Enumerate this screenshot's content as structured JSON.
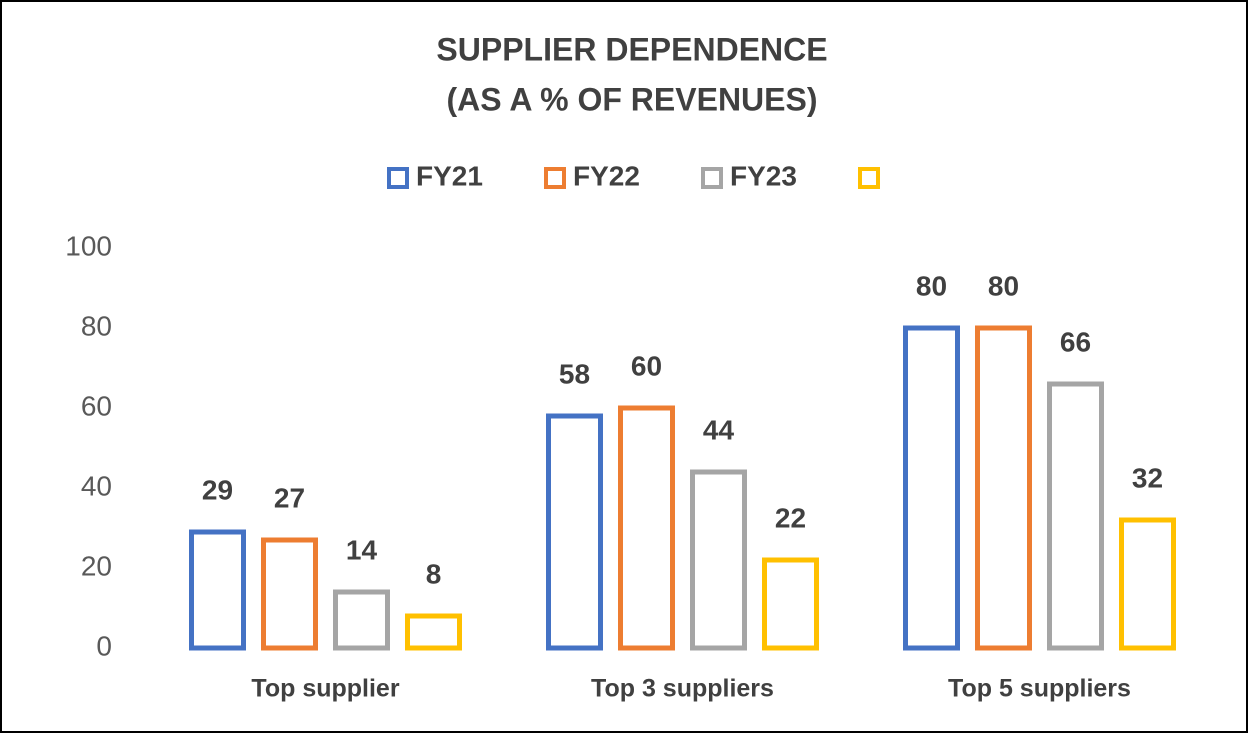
{
  "chart_data": {
    "type": "bar",
    "title": [
      "SUPPLIER DEPENDENCE",
      "(AS A % OF REVENUES)"
    ],
    "categories": [
      "Top supplier",
      "Top 3 suppliers",
      "Top 5 suppliers"
    ],
    "series": [
      {
        "name": "FY21",
        "color": "#4472c4",
        "values": [
          29,
          58,
          80
        ]
      },
      {
        "name": "FY22",
        "color": "#ed7d31",
        "values": [
          27,
          60,
          80
        ]
      },
      {
        "name": "FY23",
        "color": "#a5a5a5",
        "values": [
          14,
          44,
          66
        ]
      },
      {
        "color": "#ffc000",
        "values": [
          8,
          22,
          32
        ]
      }
    ],
    "ylim": [
      0,
      100
    ],
    "yticks": [
      0,
      20,
      40,
      60,
      80,
      100
    ],
    "grid": false,
    "legend": "top"
  }
}
